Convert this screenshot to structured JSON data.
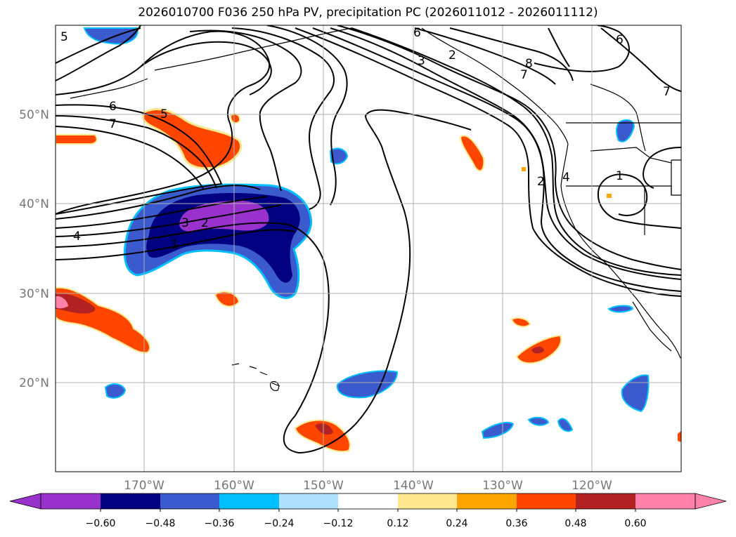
{
  "title": "2026010700 F036 250 hPa PV, precipitation PC (2026011012 - 2026011112)",
  "map": {
    "lon_labels": [
      "170°W",
      "160°W",
      "150°W",
      "140°W",
      "130°W",
      "120°W"
    ],
    "lat_labels": [
      "50°N",
      "40°N",
      "30°N",
      "20°N"
    ],
    "contour_labels": [
      "5",
      "6",
      "7",
      "4",
      "3",
      "2",
      "1",
      "5",
      "3",
      "2",
      "8",
      "7",
      "6",
      "6",
      "7",
      "2",
      "4",
      "1"
    ]
  },
  "colorbar": {
    "ticks": [
      "−0.60",
      "−0.48",
      "−0.36",
      "−0.24",
      "−0.12",
      "0.12",
      "0.24",
      "0.36",
      "0.48",
      "0.60"
    ],
    "colors": [
      "#9932cc",
      "#000080",
      "#3a5acd",
      "#00bfff",
      "#b0e2ff",
      "#ffffff",
      "#ffe88e",
      "#ffa500",
      "#ff4500",
      "#b22222",
      "#ff82ab"
    ]
  },
  "chart_data": {
    "type": "map",
    "title": "2026010700 F036 250 hPa PV, precipitation PC (2026011012 - 2026011112)",
    "lon_range": [
      -180,
      -110
    ],
    "lat_range": [
      10,
      60
    ],
    "x_ticks": [
      -170,
      -160,
      -150,
      -140,
      -130,
      -120
    ],
    "y_ticks": [
      20,
      30,
      40,
      50
    ],
    "grid": true,
    "colorbar_levels": [
      -0.6,
      -0.48,
      -0.36,
      -0.24,
      -0.12,
      0.12,
      0.24,
      0.36,
      0.48,
      0.6
    ],
    "contour_field": "250 hPa PV",
    "contour_levels_shown": [
      1,
      2,
      3,
      4,
      5,
      6,
      7,
      8
    ],
    "fill_field": "precipitation PC",
    "colorbar_extend": "both"
  }
}
